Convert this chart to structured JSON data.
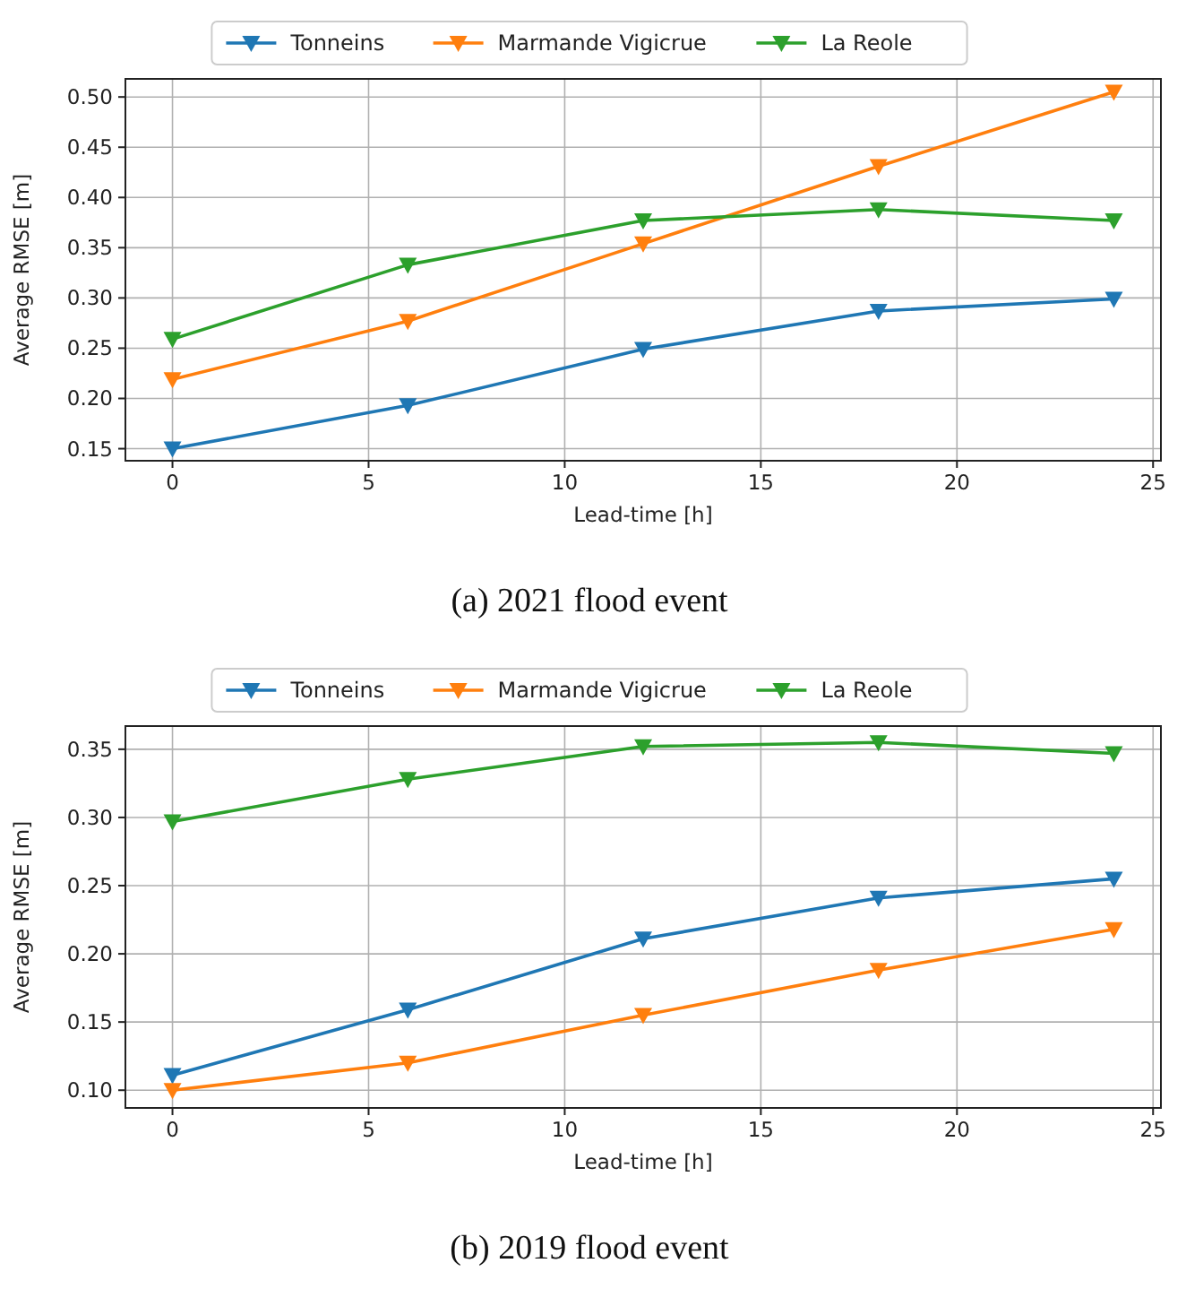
{
  "chart_data": [
    {
      "type": "line",
      "xlabel": "Lead-time [h]",
      "ylabel": "Average RMSE [m]",
      "annotations": [
        "(a) 2021 flood event"
      ],
      "x": [
        0,
        6,
        12,
        18,
        24
      ],
      "series": [
        {
          "name": "Tonneins",
          "color": "#1f77b4",
          "values": [
            0.15,
            0.193,
            0.249,
            0.287,
            0.299
          ]
        },
        {
          "name": "Marmande Vigicrue",
          "color": "#ff7f0e",
          "values": [
            0.219,
            0.277,
            0.354,
            0.431,
            0.505
          ]
        },
        {
          "name": "La Reole",
          "color": "#2ca02c",
          "values": [
            0.259,
            0.333,
            0.377,
            0.388,
            0.377
          ]
        }
      ],
      "xlim": [
        -1.2,
        25.2
      ],
      "xticks": [
        0,
        5,
        10,
        15,
        20,
        25
      ],
      "ylim": [
        0.138,
        0.518
      ],
      "yticks": [
        {
          "value": 0.15,
          "label": "0.15"
        },
        {
          "value": 0.2,
          "label": "0.20"
        },
        {
          "value": 0.25,
          "label": "0.25"
        },
        {
          "value": 0.3,
          "label": "0.30"
        },
        {
          "value": 0.35,
          "label": "0.35"
        },
        {
          "value": 0.4,
          "label": "0.40"
        },
        {
          "value": 0.45,
          "label": "0.45"
        },
        {
          "value": 0.5,
          "label": "0.50"
        }
      ],
      "grid": true,
      "legend": "top",
      "marker": "triangle",
      "line_style": "solid"
    },
    {
      "type": "line",
      "xlabel": "Lead-time [h]",
      "ylabel": "Average RMSE [m]",
      "annotations": [
        "(b) 2019 flood event"
      ],
      "x": [
        0,
        6,
        12,
        18,
        24
      ],
      "series": [
        {
          "name": "Tonneins",
          "color": "#1f77b4",
          "values": [
            0.111,
            0.159,
            0.211,
            0.241,
            0.255
          ]
        },
        {
          "name": "Marmande Vigicrue",
          "color": "#ff7f0e",
          "values": [
            0.1,
            0.12,
            0.155,
            0.188,
            0.218
          ]
        },
        {
          "name": "La Reole",
          "color": "#2ca02c",
          "values": [
            0.297,
            0.328,
            0.352,
            0.355,
            0.347
          ]
        }
      ],
      "xlim": [
        -1.2,
        25.2
      ],
      "xticks": [
        0,
        5,
        10,
        15,
        20,
        25
      ],
      "ylim": [
        0.087,
        0.367
      ],
      "yticks": [
        {
          "value": 0.1,
          "label": "0.10"
        },
        {
          "value": 0.15,
          "label": "0.15"
        },
        {
          "value": 0.2,
          "label": "0.20"
        },
        {
          "value": 0.25,
          "label": "0.25"
        },
        {
          "value": 0.3,
          "label": "0.30"
        },
        {
          "value": 0.35,
          "label": "0.35"
        }
      ],
      "grid": true,
      "legend": "top",
      "marker": "triangle",
      "line_style": "solid"
    }
  ]
}
